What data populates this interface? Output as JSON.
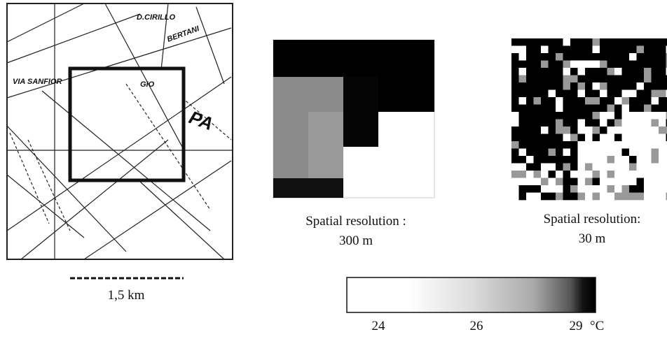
{
  "figure": {
    "map": {
      "street_labels": [
        "VIA SANFIOR",
        "D.CIRILLO",
        "BERTANI",
        "GIO",
        "PA"
      ],
      "scale_label": "1,5 km"
    },
    "panels": [
      {
        "caption_line1": "Spatial resolution :",
        "caption_line2": "300 m"
      },
      {
        "caption_line1": "Spatial resolution:",
        "caption_line2": "30 m"
      }
    ],
    "colorbar": {
      "ticks": [
        24,
        26,
        29
      ],
      "unit": "°C"
    }
  }
}
